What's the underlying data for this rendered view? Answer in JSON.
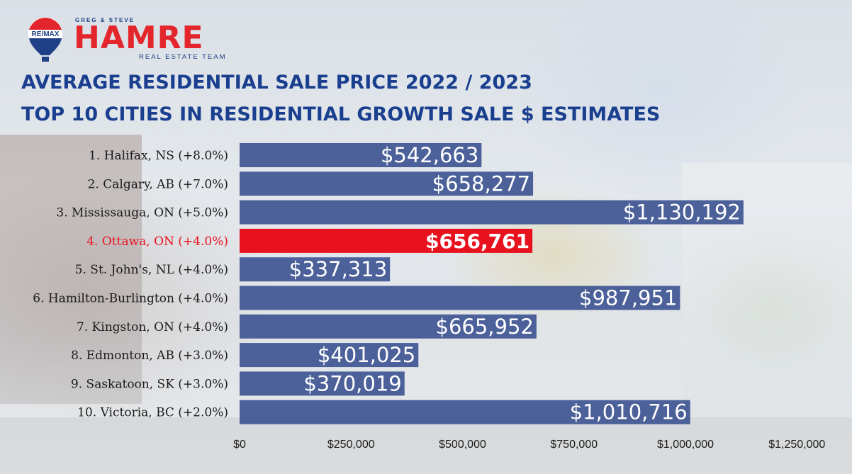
{
  "logo": {
    "balloon_text": "RE/MAX",
    "top_text": "GREG & STEVE",
    "main_text": "HAMRE",
    "sub_text": "REAL ESTATE TEAM"
  },
  "title_line1": "AVERAGE RESIDENTIAL SALE PRICE 2022 / 2023",
  "title_line2": "TOP 10 CITIES IN RESIDENTIAL GROWTH SALE $ ESTIMATES",
  "colors": {
    "bar": "#3f5592",
    "highlight_bar": "#e8121f",
    "highlight_label": "#e8121f",
    "title": "#1a3f8f",
    "brand_red": "#e3262c"
  },
  "chart_data": {
    "type": "bar",
    "orientation": "horizontal",
    "categories": [
      "1. Halifax, NS (+8.0%)",
      "2. Calgary, AB (+7.0%)",
      "3. Mississauga, ON (+5.0%)",
      "4. Ottawa, ON (+4.0%)",
      "5. St. John's, NL (+4.0%)",
      "6. Hamilton-Burlington (+4.0%)",
      "7. Kingston, ON (+4.0%)",
      "8. Edmonton, AB (+3.0%)",
      "9. Saskatoon, SK (+3.0%)",
      "10. Victoria, BC (+2.0%)"
    ],
    "values": [
      542663,
      658277,
      1130192,
      656761,
      337313,
      987951,
      665952,
      401025,
      370019,
      1010716
    ],
    "value_labels": [
      "$542,663",
      "$658,277",
      "$1,130,192",
      "$656,761",
      "$337,313",
      "$987,951",
      "$665,952",
      "$401,025",
      "$370,019",
      "$1,010,716"
    ],
    "highlight_index": 3,
    "xlim": [
      0,
      1250000
    ],
    "x_ticks": [
      0,
      250000,
      500000,
      750000,
      1000000,
      1250000
    ],
    "x_tick_labels": [
      "$0",
      "$250,000",
      "$500,000",
      "$750,000",
      "$1,000,000",
      "$1,250,000"
    ],
    "grid": false,
    "legend": "none"
  }
}
